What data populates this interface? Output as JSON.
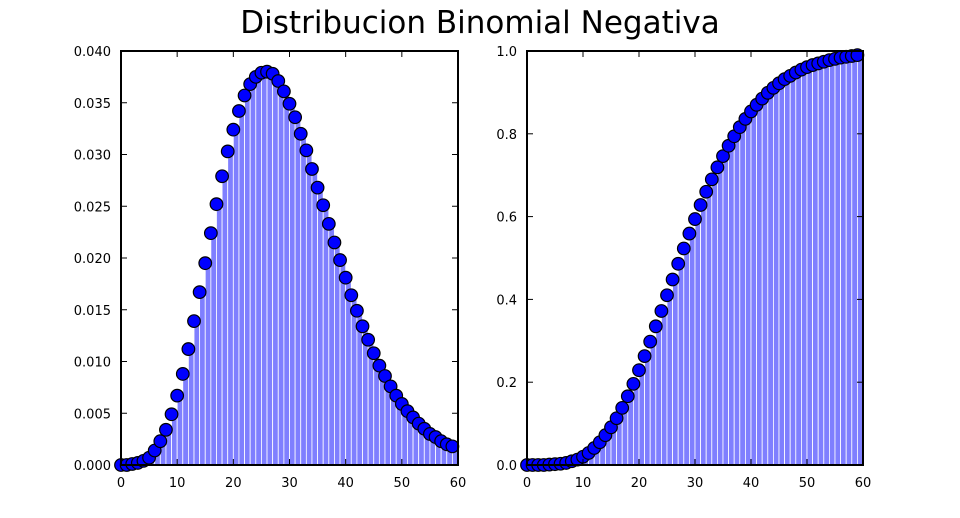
{
  "title": "Distribucion Binomial Negativa",
  "colors": {
    "bar": "#7f7fff",
    "bar_edge": "#ffffff",
    "marker": "#0000ff",
    "marker_edge": "#000000",
    "axes": "#000000"
  },
  "chart_data": [
    {
      "type": "bar",
      "name": "pmf",
      "x": [
        0,
        1,
        2,
        3,
        4,
        5,
        6,
        7,
        8,
        9,
        10,
        11,
        12,
        13,
        14,
        15,
        16,
        17,
        18,
        19,
        20,
        21,
        22,
        23,
        24,
        25,
        26,
        27,
        28,
        29,
        30,
        31,
        32,
        33,
        34,
        35,
        36,
        37,
        38,
        39,
        40,
        41,
        42,
        43,
        44,
        45,
        46,
        47,
        48,
        49,
        50,
        51,
        52,
        53,
        54,
        55,
        56,
        57,
        58,
        59
      ],
      "values": [
        0.0,
        0.0,
        0.0001,
        0.0002,
        0.0004,
        0.0007,
        0.0014,
        0.0023,
        0.0034,
        0.0049,
        0.0067,
        0.0088,
        0.0112,
        0.0139,
        0.0167,
        0.0195,
        0.0224,
        0.0252,
        0.0279,
        0.0303,
        0.0324,
        0.0342,
        0.0357,
        0.0368,
        0.0375,
        0.0379,
        0.038,
        0.0378,
        0.0371,
        0.0361,
        0.0349,
        0.0336,
        0.032,
        0.0304,
        0.0286,
        0.0268,
        0.0251,
        0.0233,
        0.0215,
        0.0198,
        0.0181,
        0.0164,
        0.0149,
        0.0134,
        0.0121,
        0.0108,
        0.0096,
        0.0086,
        0.0076,
        0.0067,
        0.0059,
        0.0052,
        0.0046,
        0.004,
        0.0035,
        0.003,
        0.0027,
        0.0023,
        0.002,
        0.0018
      ],
      "xlim": [
        0,
        60
      ],
      "ylim": [
        0,
        0.04
      ],
      "xticks": [
        "0",
        "10",
        "20",
        "30",
        "40",
        "50",
        "60"
      ],
      "yticks": [
        "0.000",
        "0.005",
        "0.010",
        "0.015",
        "0.020",
        "0.025",
        "0.030",
        "0.035",
        "0.040"
      ]
    },
    {
      "type": "bar",
      "name": "cdf",
      "x": [
        0,
        1,
        2,
        3,
        4,
        5,
        6,
        7,
        8,
        9,
        10,
        11,
        12,
        13,
        14,
        15,
        16,
        17,
        18,
        19,
        20,
        21,
        22,
        23,
        24,
        25,
        26,
        27,
        28,
        29,
        30,
        31,
        32,
        33,
        34,
        35,
        36,
        37,
        38,
        39,
        40,
        41,
        42,
        43,
        44,
        45,
        46,
        47,
        48,
        49,
        50,
        51,
        52,
        53,
        54,
        55,
        56,
        57,
        58,
        59
      ],
      "values": [
        0.0,
        0.0,
        0.0,
        0.0,
        0.001,
        0.002,
        0.003,
        0.005,
        0.009,
        0.013,
        0.02,
        0.029,
        0.041,
        0.055,
        0.072,
        0.091,
        0.113,
        0.138,
        0.166,
        0.196,
        0.229,
        0.263,
        0.298,
        0.335,
        0.372,
        0.41,
        0.448,
        0.486,
        0.523,
        0.559,
        0.594,
        0.628,
        0.66,
        0.69,
        0.719,
        0.746,
        0.771,
        0.794,
        0.816,
        0.836,
        0.854,
        0.87,
        0.885,
        0.899,
        0.911,
        0.922,
        0.932,
        0.94,
        0.948,
        0.955,
        0.961,
        0.966,
        0.97,
        0.974,
        0.978,
        0.981,
        0.984,
        0.986,
        0.988,
        0.99
      ],
      "xlim": [
        0,
        60
      ],
      "ylim": [
        0,
        1.0
      ],
      "xticks": [
        "0",
        "10",
        "20",
        "30",
        "40",
        "50",
        "60"
      ],
      "yticks": [
        "0.0",
        "0.2",
        "0.4",
        "0.6",
        "0.8",
        "1.0"
      ]
    }
  ]
}
